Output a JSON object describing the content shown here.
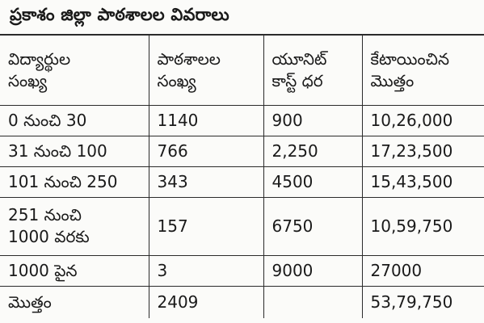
{
  "title": "ప్రకాశం జిల్లా పాఠశాలల వివరాలు",
  "columns": [
    {
      "line1": "విద్యార్థుల",
      "line2": "సంఖ్య"
    },
    {
      "line1": "పాఠశాలల",
      "line2": "సంఖ్య"
    },
    {
      "line1": "యూనిట్",
      "line2": "కాస్ట్ ధర"
    },
    {
      "line1": "కేటాయించిన",
      "line2": "మొత్తం"
    }
  ],
  "rows": [
    {
      "range_line1": "0 నుంచి 30",
      "range_line2": "",
      "schools": "1140",
      "unit_cost": "900",
      "allocated": "10,26,000"
    },
    {
      "range_line1": "31 నుంచి 100",
      "range_line2": "",
      "schools": "766",
      "unit_cost": "2,250",
      "allocated": "17,23,500"
    },
    {
      "range_line1": "101 నుంచి 250",
      "range_line2": "",
      "schools": "343",
      "unit_cost": "4500",
      "allocated": "15,43,500"
    },
    {
      "range_line1": "251 నుంచి",
      "range_line2": "1000 వరకు",
      "schools": "157",
      "unit_cost": "6750",
      "allocated": "10,59,750"
    },
    {
      "range_line1": "1000 పైన",
      "range_line2": "",
      "schools": "3",
      "unit_cost": "9000",
      "allocated": "27000"
    }
  ],
  "total": {
    "label": "మొత్తం",
    "schools": "2409",
    "unit_cost": "",
    "allocated": "53,79,750"
  }
}
